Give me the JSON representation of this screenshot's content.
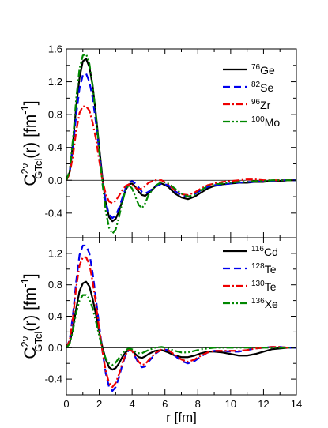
{
  "chart_data": [
    {
      "type": "line",
      "panel": "top",
      "ylabel_main": "C",
      "ylabel_sup": "2ν",
      "ylabel_sub": "GTcl",
      "ylabel_rest": "(r) [fm",
      "ylabel_unit_sup": "-1",
      "ylabel_end": "]",
      "xlim": [
        0,
        14
      ],
      "ylim": [
        -0.7,
        1.6
      ],
      "yticks": [
        "1.6",
        "1.2",
        "0.8",
        "0.4",
        "0.0",
        "-0.4"
      ],
      "ytick_values": [
        1.6,
        1.2,
        0.8,
        0.4,
        0.0,
        -0.4
      ],
      "xticks": [
        0,
        2,
        4,
        6,
        8,
        10,
        12,
        14
      ],
      "zero_line": true,
      "legend_position": "top-right",
      "series": [
        {
          "name_sup": "76",
          "name_el": "Ge",
          "color": "#000000",
          "dash": "",
          "x": [
            0,
            0.2,
            0.4,
            0.6,
            0.8,
            1.0,
            1.2,
            1.4,
            1.6,
            1.8,
            2.0,
            2.2,
            2.4,
            2.6,
            2.8,
            3.0,
            3.2,
            3.4,
            3.6,
            3.8,
            4.0,
            4.2,
            4.4,
            4.6,
            4.8,
            5.0,
            5.4,
            5.8,
            6.2,
            6.6,
            7.0,
            7.4,
            7.8,
            8.2,
            8.6,
            9.0,
            9.5,
            10,
            10.5,
            11,
            11.5,
            12,
            12.5,
            13,
            13.5,
            14
          ],
          "y": [
            0,
            0.1,
            0.45,
            0.9,
            1.25,
            1.45,
            1.48,
            1.38,
            1.15,
            0.8,
            0.4,
            0.02,
            -0.28,
            -0.45,
            -0.5,
            -0.47,
            -0.38,
            -0.25,
            -0.12,
            -0.05,
            -0.04,
            -0.08,
            -0.14,
            -0.18,
            -0.19,
            -0.16,
            -0.08,
            -0.04,
            -0.08,
            -0.16,
            -0.21,
            -0.23,
            -0.2,
            -0.15,
            -0.1,
            -0.07,
            -0.05,
            -0.04,
            -0.03,
            -0.03,
            -0.02,
            -0.02,
            -0.01,
            -0.01,
            0,
            0
          ]
        },
        {
          "name_sup": "82",
          "name_el": "Se",
          "color": "#0000ee",
          "dash": "9,5",
          "x": [
            0,
            0.2,
            0.4,
            0.6,
            0.8,
            1.0,
            1.2,
            1.4,
            1.6,
            1.8,
            2.0,
            2.2,
            2.4,
            2.6,
            2.8,
            3.0,
            3.2,
            3.4,
            3.6,
            3.8,
            4.0,
            4.2,
            4.4,
            4.6,
            4.8,
            5.0,
            5.4,
            5.8,
            6.2,
            6.6,
            7.0,
            7.4,
            7.8,
            8.2,
            8.6,
            9.0,
            9.5,
            10,
            10.5,
            11,
            11.5,
            12,
            12.5,
            13,
            13.5,
            14
          ],
          "y": [
            0,
            0.1,
            0.4,
            0.8,
            1.12,
            1.28,
            1.3,
            1.2,
            1.0,
            0.7,
            0.35,
            0.0,
            -0.27,
            -0.42,
            -0.46,
            -0.43,
            -0.34,
            -0.22,
            -0.1,
            -0.03,
            -0.01,
            -0.04,
            -0.09,
            -0.14,
            -0.16,
            -0.14,
            -0.08,
            -0.04,
            -0.06,
            -0.13,
            -0.18,
            -0.2,
            -0.17,
            -0.12,
            -0.08,
            -0.06,
            -0.05,
            -0.04,
            -0.03,
            -0.02,
            -0.02,
            -0.01,
            -0.01,
            0,
            0,
            0
          ]
        },
        {
          "name_sup": "96",
          "name_el": "Zr",
          "color": "#ee0000",
          "dash": "9,3,2,3",
          "x": [
            0,
            0.2,
            0.4,
            0.6,
            0.8,
            1.0,
            1.2,
            1.4,
            1.6,
            1.8,
            2.0,
            2.2,
            2.4,
            2.6,
            2.8,
            3.0,
            3.2,
            3.4,
            3.6,
            3.8,
            4.0,
            4.2,
            4.4,
            4.6,
            4.8,
            5.0,
            5.4,
            5.8,
            6.2,
            6.6,
            7.0,
            7.4,
            7.8,
            8.2,
            8.6,
            9.0,
            9.5,
            10,
            10.5,
            11,
            11.5,
            12,
            12.5,
            13,
            13.5,
            14
          ],
          "y": [
            0,
            0.08,
            0.3,
            0.6,
            0.82,
            0.9,
            0.9,
            0.85,
            0.7,
            0.5,
            0.24,
            0.0,
            -0.17,
            -0.26,
            -0.28,
            -0.25,
            -0.19,
            -0.12,
            -0.07,
            -0.05,
            -0.06,
            -0.09,
            -0.11,
            -0.1,
            -0.07,
            -0.03,
            0.0,
            0.0,
            -0.05,
            -0.12,
            -0.17,
            -0.18,
            -0.15,
            -0.1,
            -0.06,
            -0.04,
            -0.02,
            -0.01,
            0,
            0.01,
            0.01,
            0,
            0,
            0,
            0,
            0
          ]
        },
        {
          "name_sup": "100",
          "name_el": "Mo",
          "color": "#008800",
          "dash": "9,3,2,3,2,3",
          "x": [
            0,
            0.2,
            0.4,
            0.6,
            0.8,
            1.0,
            1.2,
            1.4,
            1.6,
            1.8,
            2.0,
            2.2,
            2.4,
            2.6,
            2.8,
            3.0,
            3.2,
            3.4,
            3.6,
            3.8,
            4.0,
            4.2,
            4.4,
            4.6,
            4.8,
            5.0,
            5.4,
            5.8,
            6.2,
            6.6,
            7.0,
            7.4,
            7.8,
            8.2,
            8.6,
            9.0,
            9.5,
            10,
            10.5,
            11,
            11.5,
            12,
            12.5,
            13,
            13.5,
            14
          ],
          "y": [
            0,
            0.12,
            0.5,
            1.0,
            1.36,
            1.52,
            1.54,
            1.42,
            1.15,
            0.78,
            0.36,
            -0.05,
            -0.38,
            -0.58,
            -0.65,
            -0.6,
            -0.45,
            -0.27,
            -0.12,
            -0.06,
            -0.1,
            -0.2,
            -0.3,
            -0.34,
            -0.28,
            -0.18,
            -0.07,
            -0.02,
            -0.04,
            -0.1,
            -0.16,
            -0.2,
            -0.18,
            -0.12,
            -0.07,
            -0.05,
            -0.04,
            -0.03,
            -0.02,
            -0.02,
            -0.01,
            -0.01,
            0,
            0,
            0,
            0
          ]
        }
      ]
    },
    {
      "type": "line",
      "panel": "bottom",
      "ylabel_main": "C",
      "ylabel_sup": "2ν",
      "ylabel_sub": "GTcl",
      "ylabel_rest": "(r) [fm",
      "ylabel_unit_sup": "-1",
      "ylabel_end": "]",
      "xlabel": "r [fm]",
      "xlim": [
        0,
        14
      ],
      "ylim": [
        -0.6,
        1.4
      ],
      "yticks": [
        "1.2",
        "0.8",
        "0.4",
        "0.0",
        "-0.4"
      ],
      "ytick_values": [
        1.2,
        0.8,
        0.4,
        0.0,
        -0.4
      ],
      "xticks": [
        0,
        2,
        4,
        6,
        8,
        10,
        12,
        14
      ],
      "xtick_labels": [
        "0",
        "2",
        "4",
        "6",
        "8",
        "10",
        "12",
        "14"
      ],
      "zero_line": true,
      "legend_position": "top-right",
      "series": [
        {
          "name_sup": "116",
          "name_el": "Cd",
          "color": "#000000",
          "dash": "",
          "x": [
            0,
            0.2,
            0.4,
            0.6,
            0.8,
            1.0,
            1.2,
            1.4,
            1.6,
            1.8,
            2.0,
            2.2,
            2.4,
            2.6,
            2.8,
            3.0,
            3.2,
            3.4,
            3.6,
            3.8,
            4.0,
            4.2,
            4.4,
            4.6,
            4.8,
            5.0,
            5.4,
            5.8,
            6.2,
            6.6,
            7.0,
            7.4,
            7.8,
            8.2,
            8.6,
            9.0,
            9.5,
            10,
            10.5,
            11,
            11.5,
            12,
            12.5,
            13,
            13.5,
            14
          ],
          "y": [
            0,
            0.06,
            0.25,
            0.5,
            0.72,
            0.82,
            0.84,
            0.78,
            0.62,
            0.42,
            0.2,
            0.0,
            -0.15,
            -0.25,
            -0.28,
            -0.26,
            -0.2,
            -0.12,
            -0.06,
            -0.03,
            -0.04,
            -0.08,
            -0.12,
            -0.13,
            -0.11,
            -0.08,
            -0.04,
            -0.03,
            -0.06,
            -0.1,
            -0.12,
            -0.12,
            -0.1,
            -0.07,
            -0.05,
            -0.05,
            -0.06,
            -0.08,
            -0.1,
            -0.1,
            -0.08,
            -0.05,
            -0.02,
            -0.01,
            0,
            0
          ]
        },
        {
          "name_sup": "128",
          "name_el": "Te",
          "color": "#0000ee",
          "dash": "9,5",
          "x": [
            0,
            0.2,
            0.4,
            0.6,
            0.8,
            1.0,
            1.2,
            1.4,
            1.6,
            1.8,
            2.0,
            2.2,
            2.4,
            2.6,
            2.8,
            3.0,
            3.2,
            3.4,
            3.6,
            3.8,
            4.0,
            4.2,
            4.4,
            4.6,
            4.8,
            5.0,
            5.4,
            5.8,
            6.2,
            6.6,
            7.0,
            7.4,
            7.8,
            8.2,
            8.6,
            9.0,
            9.5,
            10,
            10.5,
            11,
            11.5,
            12,
            12.5,
            13,
            13.5,
            14
          ],
          "y": [
            0,
            0.1,
            0.42,
            0.85,
            1.18,
            1.3,
            1.3,
            1.2,
            0.95,
            0.62,
            0.28,
            -0.05,
            -0.33,
            -0.5,
            -0.55,
            -0.5,
            -0.38,
            -0.22,
            -0.1,
            -0.03,
            -0.04,
            -0.12,
            -0.2,
            -0.25,
            -0.24,
            -0.18,
            -0.08,
            -0.02,
            -0.03,
            -0.1,
            -0.17,
            -0.2,
            -0.17,
            -0.11,
            -0.06,
            -0.04,
            -0.04,
            -0.05,
            -0.05,
            -0.03,
            -0.01,
            0,
            0.01,
            0.01,
            0,
            0
          ]
        },
        {
          "name_sup": "130",
          "name_el": "Te",
          "color": "#ee0000",
          "dash": "9,3,2,3",
          "x": [
            0,
            0.2,
            0.4,
            0.6,
            0.8,
            1.0,
            1.2,
            1.4,
            1.6,
            1.8,
            2.0,
            2.2,
            2.4,
            2.6,
            2.8,
            3.0,
            3.2,
            3.4,
            3.6,
            3.8,
            4.0,
            4.2,
            4.4,
            4.6,
            4.8,
            5.0,
            5.4,
            5.8,
            6.2,
            6.6,
            7.0,
            7.4,
            7.8,
            8.2,
            8.6,
            9.0,
            9.5,
            10,
            10.5,
            11,
            11.5,
            12,
            12.5,
            13,
            13.5,
            14
          ],
          "y": [
            0,
            0.09,
            0.38,
            0.77,
            1.05,
            1.15,
            1.15,
            1.06,
            0.84,
            0.55,
            0.24,
            -0.05,
            -0.3,
            -0.45,
            -0.5,
            -0.45,
            -0.34,
            -0.2,
            -0.09,
            -0.03,
            -0.04,
            -0.11,
            -0.18,
            -0.22,
            -0.21,
            -0.16,
            -0.07,
            -0.02,
            -0.03,
            -0.09,
            -0.15,
            -0.18,
            -0.15,
            -0.1,
            -0.06,
            -0.04,
            -0.04,
            -0.04,
            -0.04,
            -0.03,
            -0.01,
            0,
            0.01,
            0.01,
            0,
            0
          ]
        },
        {
          "name_sup": "136",
          "name_el": "Xe",
          "color": "#008800",
          "dash": "9,3,2,3,2,3",
          "x": [
            0,
            0.2,
            0.4,
            0.6,
            0.8,
            1.0,
            1.2,
            1.4,
            1.6,
            1.8,
            2.0,
            2.2,
            2.4,
            2.6,
            2.8,
            3.0,
            3.2,
            3.4,
            3.6,
            3.8,
            4.0,
            4.2,
            4.4,
            4.6,
            4.8,
            5.0,
            5.4,
            5.8,
            6.2,
            6.6,
            7.0,
            7.4,
            7.8,
            8.2,
            8.6,
            9.0,
            9.5,
            10,
            10.5,
            11,
            11.5,
            12,
            12.5,
            13,
            13.5,
            14
          ],
          "y": [
            0,
            0.05,
            0.22,
            0.45,
            0.6,
            0.67,
            0.67,
            0.62,
            0.5,
            0.33,
            0.15,
            -0.02,
            -0.14,
            -0.2,
            -0.22,
            -0.19,
            -0.13,
            -0.07,
            -0.03,
            -0.01,
            -0.02,
            -0.05,
            -0.07,
            -0.07,
            -0.05,
            -0.03,
            0,
            0.01,
            -0.01,
            -0.04,
            -0.06,
            -0.06,
            -0.04,
            -0.02,
            -0.01,
            0,
            0,
            0,
            0,
            0,
            0,
            0,
            0,
            0,
            0,
            0
          ]
        }
      ]
    }
  ]
}
